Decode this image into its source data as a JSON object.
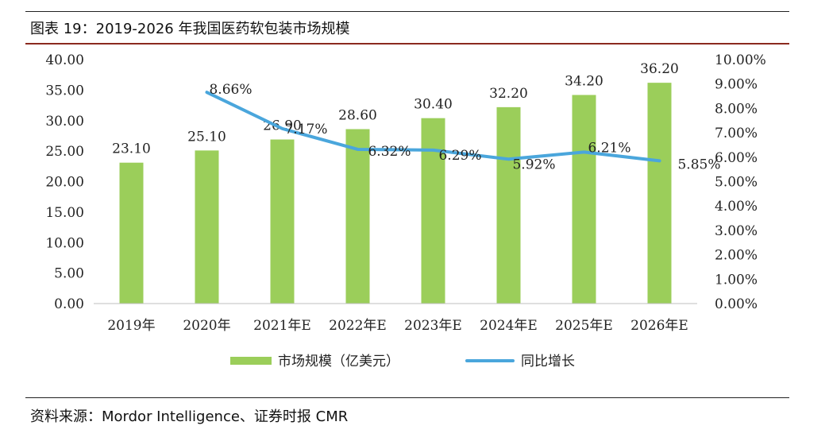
{
  "header": {
    "caption": "图表 19：2019-2026 年我国医药软包装市场规模"
  },
  "footer": {
    "source": "资料来源：Mordor Intelligence、证券时报 CMR"
  },
  "colors": {
    "bar": "#9bce5a",
    "line": "#4aa6dc",
    "rule": "#8b2a1f"
  },
  "chart_data": {
    "type": "bar",
    "title": "",
    "categories": [
      "2019年",
      "2020年",
      "2021年E",
      "2022年E",
      "2023年E",
      "2024年E",
      "2025年E",
      "2026年E"
    ],
    "series": [
      {
        "name": "市场规模（亿美元）",
        "type": "bar",
        "axis": "left",
        "values": [
          23.1,
          25.1,
          26.9,
          28.6,
          30.4,
          32.2,
          34.2,
          36.2
        ],
        "labels": [
          "23.10",
          "25.10",
          "26.90",
          "28.60",
          "30.40",
          "32.20",
          "34.20",
          "36.20"
        ]
      },
      {
        "name": "同比增长",
        "type": "line",
        "axis": "right",
        "values": [
          null,
          8.66,
          7.17,
          6.32,
          6.29,
          5.92,
          6.21,
          5.85
        ],
        "labels": [
          "",
          "8.66%",
          "7.17%",
          "6.32%",
          "6.29%",
          "5.92%",
          "6.21%",
          "5.85%"
        ]
      }
    ],
    "y_left": {
      "ylim": [
        0,
        40
      ],
      "ticks": [
        "0.00",
        "5.00",
        "10.00",
        "15.00",
        "20.00",
        "25.00",
        "30.00",
        "35.00",
        "40.00"
      ]
    },
    "y_right": {
      "ylim": [
        0,
        10
      ],
      "ticks": [
        "0.00%",
        "1.00%",
        "2.00%",
        "3.00%",
        "4.00%",
        "5.00%",
        "6.00%",
        "7.00%",
        "8.00%",
        "9.00%",
        "10.00%"
      ]
    },
    "legend": [
      "市场规模（亿美元）",
      "同比增长"
    ],
    "legend_position": "bottom",
    "grid": false
  }
}
